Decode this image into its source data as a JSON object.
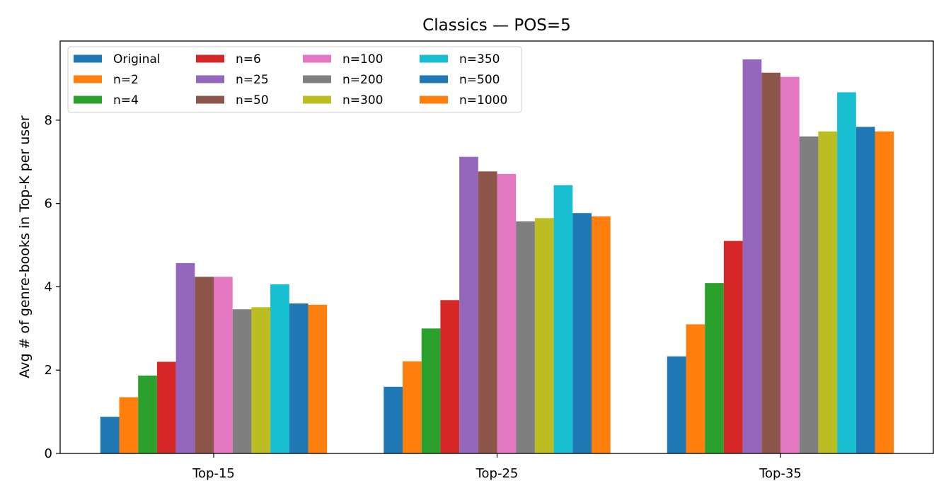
{
  "chart_data": {
    "type": "bar",
    "title": "Classics — POS=5",
    "xlabel": "",
    "ylabel": "Avg # of genre-books in Top-K per user",
    "categories": [
      "Top-15",
      "Top-25",
      "Top-35"
    ],
    "ylim": [
      0,
      9.9
    ],
    "yticks": [
      0,
      2,
      4,
      6,
      8
    ],
    "grid": false,
    "legend_position": "top-left",
    "legend_columns": 4,
    "series": [
      {
        "name": "Original",
        "color": "#1f77b4",
        "values": [
          0.88,
          1.6,
          2.33
        ]
      },
      {
        "name": "n=2",
        "color": "#ff7f0e",
        "values": [
          1.35,
          2.21,
          3.1
        ]
      },
      {
        "name": "n=4",
        "color": "#2ca02c",
        "values": [
          1.87,
          3.0,
          4.09
        ]
      },
      {
        "name": "n=6",
        "color": "#d62728",
        "values": [
          2.2,
          3.68,
          5.1
        ]
      },
      {
        "name": "n=25",
        "color": "#9467bd",
        "values": [
          4.57,
          7.12,
          9.46
        ]
      },
      {
        "name": "n=50",
        "color": "#8c564b",
        "values": [
          4.24,
          6.77,
          9.14
        ]
      },
      {
        "name": "n=100",
        "color": "#e377c2",
        "values": [
          4.24,
          6.71,
          9.04
        ]
      },
      {
        "name": "n=200",
        "color": "#7f7f7f",
        "values": [
          3.46,
          5.57,
          7.61
        ]
      },
      {
        "name": "n=300",
        "color": "#bcbd22",
        "values": [
          3.51,
          5.65,
          7.73
        ]
      },
      {
        "name": "n=350",
        "color": "#17becf",
        "values": [
          4.06,
          6.44,
          8.67
        ]
      },
      {
        "name": "n=500",
        "color": "#1f77b4",
        "values": [
          3.6,
          5.77,
          7.84
        ]
      },
      {
        "name": "n=1000",
        "color": "#ff7f0e",
        "values": [
          3.57,
          5.69,
          7.73
        ]
      }
    ]
  }
}
